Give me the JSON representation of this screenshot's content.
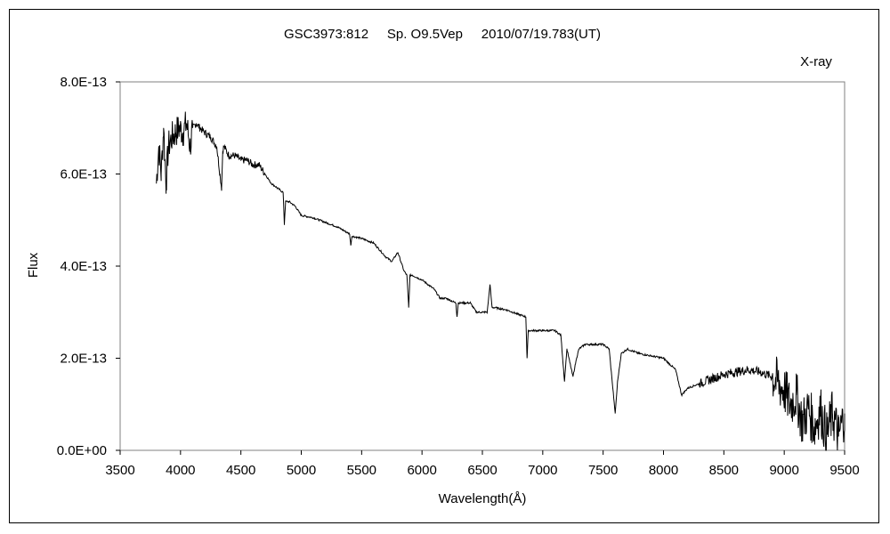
{
  "chart_data": {
    "type": "line",
    "title": "GSC3973:812     Sp. O9.5Vep     2010/07/19.783(UT)",
    "annotation": "X-ray",
    "xlabel": "Wavelength(Å)",
    "ylabel": "Flux",
    "xlim": [
      3500,
      9500
    ],
    "ylim": [
      0,
      8e-13
    ],
    "xticks": [
      3500,
      4000,
      4500,
      5000,
      5500,
      6000,
      6500,
      7000,
      7500,
      8000,
      8500,
      9000,
      9500
    ],
    "yticks": [
      0,
      2e-13,
      4e-13,
      6e-13,
      8e-13
    ],
    "ytick_labels": [
      "0.0E+00",
      "2.0E-13",
      "4.0E-13",
      "6.0E-13",
      "8.0E-13"
    ],
    "grid": false,
    "line_color": "#000000",
    "series": [
      {
        "x": [
          3800,
          3820,
          3840,
          3860,
          3880,
          3900,
          3930,
          3960,
          3990,
          4020,
          4050,
          4080,
          4100,
          4130,
          4160,
          4200,
          4250,
          4300,
          4340,
          4350,
          4360,
          4400,
          4450,
          4500,
          4550,
          4600,
          4650,
          4700,
          4750,
          4800,
          4850,
          4860,
          4870,
          4900,
          4950,
          5000,
          5100,
          5200,
          5300,
          5400,
          5410,
          5420,
          5500,
          5600,
          5700,
          5750,
          5800,
          5850,
          5875,
          5890,
          5900,
          5920,
          6000,
          6100,
          6150,
          6200,
          6280,
          6290,
          6300,
          6400,
          6450,
          6500,
          6540,
          6563,
          6580,
          6600,
          6700,
          6800,
          6860,
          6870,
          6880,
          6950,
          7000,
          7100,
          7150,
          7180,
          7200,
          7250,
          7280,
          7300,
          7350,
          7400,
          7500,
          7550,
          7600,
          7620,
          7650,
          7700,
          7800,
          7900,
          8000,
          8100,
          8150,
          8200,
          8300,
          8400,
          8500,
          8600,
          8700,
          8800,
          8900,
          9000,
          9050,
          9100,
          9150,
          9200,
          9250,
          9300,
          9350,
          9400,
          9450,
          9500
        ],
        "y": [
          5.8e-13,
          6.6e-13,
          6e-13,
          7e-13,
          5.8e-13,
          6.6e-13,
          6.8e-13,
          6.9e-13,
          7e-13,
          6.9e-13,
          7.1e-13,
          6.6e-13,
          7e-13,
          7.1e-13,
          7e-13,
          6.9e-13,
          6.8e-13,
          6.6e-13,
          5.7e-13,
          6.5e-13,
          6.6e-13,
          6.4e-13,
          6.4e-13,
          6.3e-13,
          6.3e-13,
          6.2e-13,
          6.2e-13,
          6e-13,
          5.8e-13,
          5.7e-13,
          5.6e-13,
          4.9e-13,
          5.4e-13,
          5.4e-13,
          5.3e-13,
          5.1e-13,
          5.05e-13,
          4.95e-13,
          4.85e-13,
          4.7e-13,
          4.45e-13,
          4.65e-13,
          4.6e-13,
          4.5e-13,
          4.2e-13,
          4.1e-13,
          4.3e-13,
          3.9e-13,
          3.8e-13,
          3.1e-13,
          3.8e-13,
          3.8e-13,
          3.7e-13,
          3.5e-13,
          3.3e-13,
          3.3e-13,
          3.2e-13,
          2.9e-13,
          3.2e-13,
          3.2e-13,
          3e-13,
          3e-13,
          3e-13,
          3.6e-13,
          3.1e-13,
          3.1e-13,
          3.05e-13,
          2.95e-13,
          2.9e-13,
          2e-13,
          2.6e-13,
          2.6e-13,
          2.6e-13,
          2.6e-13,
          2.5e-13,
          1.5e-13,
          2.2e-13,
          1.6e-13,
          2e-13,
          2.2e-13,
          2.3e-13,
          2.3e-13,
          2.3e-13,
          2.2e-13,
          8e-14,
          1.5e-13,
          2.1e-13,
          2.2e-13,
          2.1e-13,
          2.05e-13,
          2e-13,
          1.75e-13,
          1.2e-13,
          1.35e-13,
          1.45e-13,
          1.55e-13,
          1.65e-13,
          1.7e-13,
          1.75e-13,
          1.7e-13,
          1.6e-13,
          1.3e-13,
          1e-13,
          1.2e-13,
          6e-14,
          9e-14,
          5e-14,
          9e-14,
          3e-14,
          8e-14,
          3e-14,
          8e-14
        ]
      }
    ]
  }
}
